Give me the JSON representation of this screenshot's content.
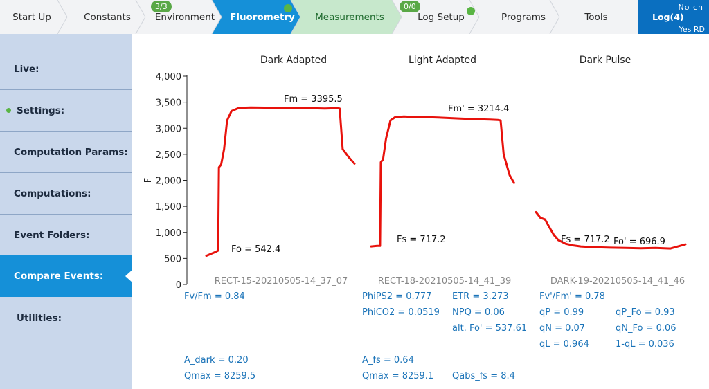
{
  "tabs": [
    {
      "label": "Start Up"
    },
    {
      "label": "Constants"
    },
    {
      "label": "Environment",
      "badge": "3/3"
    },
    {
      "label": "Fluorometry",
      "status_dot": true
    },
    {
      "label": "Measurements"
    },
    {
      "label": "Log Setup",
      "badge": "0/0",
      "status_dot": true
    },
    {
      "label": "Programs"
    },
    {
      "label": "Tools"
    }
  ],
  "active_tab": "Fluorometry",
  "log": {
    "label": "Log(4)",
    "status_top": "No ch",
    "status_bottom": "Yes RD"
  },
  "sidebar": {
    "items": [
      {
        "label": "Live:"
      },
      {
        "label": "Settings:",
        "status_dot": true
      },
      {
        "label": "Computation Params:"
      },
      {
        "label": "Computations:"
      },
      {
        "label": "Event Folders:"
      },
      {
        "label": "Compare Events:",
        "active": true
      },
      {
        "label": "Utilities:"
      }
    ]
  },
  "colors": {
    "active_tab": "#1590d8",
    "measurements_tab": "#c7e8cc",
    "log_tab": "#0a6fc0",
    "trace": "#e8120c",
    "metric_text": "#1a73b8",
    "status_dot": "#5ab544"
  },
  "chart_data": {
    "type": "line",
    "ylabel": "F",
    "ylim": [
      0,
      4000
    ],
    "yticks": [
      "0",
      "500",
      "1,000",
      "1,500",
      "2,000",
      "2,500",
      "3,000",
      "3,500",
      "4,000"
    ],
    "panels": [
      {
        "title": "Dark Adapted",
        "event": "RECT-15-20210505-14_37_07",
        "annotations": [
          "Fm = 3395.5",
          "Fo = 542.4"
        ],
        "series": [
          {
            "x": [
              0,
              0.06,
              0.08,
              0.085,
              0.1,
              0.12,
              0.14,
              0.17,
              0.22,
              0.3,
              0.4,
              0.5,
              0.6,
              0.7,
              0.8,
              0.88,
              0.9,
              0.92,
              0.96,
              1.0
            ],
            "y": [
              550,
              620,
              650,
              2250,
              2300,
              2600,
              3150,
              3330,
              3390,
              3400,
              3395,
              3395,
              3390,
              3385,
              3380,
              3385,
              3380,
              2600,
              2450,
              2320
            ]
          }
        ]
      },
      {
        "title": "Light Adapted",
        "event": "RECT-18-20210505-14_41_39",
        "annotations": [
          "Fm' = 3214.4",
          "Fs = 717.2"
        ],
        "series": [
          {
            "x": [
              0,
              0.04,
              0.06,
              0.065,
              0.08,
              0.1,
              0.13,
              0.16,
              0.22,
              0.3,
              0.4,
              0.5,
              0.6,
              0.7,
              0.8,
              0.85,
              0.87,
              0.89,
              0.93,
              0.96
            ],
            "y": [
              730,
              740,
              740,
              2350,
              2400,
              2800,
              3150,
              3210,
              3225,
              3215,
              3210,
              3200,
              3185,
              3175,
              3165,
              3160,
              3150,
              2500,
              2100,
              1950
            ]
          }
        ]
      },
      {
        "title": "Dark Pulse",
        "event": "DARK-19-20210505-14_41_46",
        "annotations": [
          "Fs = 717.2",
          "Fo' = 696.9"
        ],
        "series": [
          {
            "x": [
              0,
              0.03,
              0.06,
              0.09,
              0.12,
              0.15,
              0.2,
              0.25,
              0.3,
              0.35,
              0.4,
              0.5,
              0.6,
              0.7,
              0.8,
              0.9,
              0.95,
              1.0
            ],
            "y": [
              1390,
              1280,
              1250,
              1100,
              950,
              850,
              780,
              750,
              730,
              720,
              715,
              705,
              700,
              695,
              700,
              690,
              730,
              770
            ]
          }
        ]
      }
    ]
  },
  "metrics": {
    "fv_fm": "Fv/Fm = 0.84",
    "a_dark": "A_dark = 0.20",
    "qmax_dark": "Qmax = 8259.5",
    "phips2": "PhiPS2 = 0.777",
    "phico2": "PhiCO2 = 0.0519",
    "etr": "ETR = 3.273",
    "npq": "NPQ = 0.06",
    "alt_fo": "alt. Fo' = 537.61",
    "a_fs": "A_fs = 0.64",
    "qmax_light": "Qmax = 8259.1",
    "qabs_fs": "Qabs_fs = 8.4",
    "fv_fm_prime": "Fv'/Fm' = 0.78",
    "qp": "qP = 0.99",
    "qp_fo": "qP_Fo = 0.93",
    "qn": "qN = 0.07",
    "qn_fo": "qN_Fo = 0.06",
    "ql": "qL = 0.964",
    "one_minus_ql": "1-qL = 0.036"
  }
}
